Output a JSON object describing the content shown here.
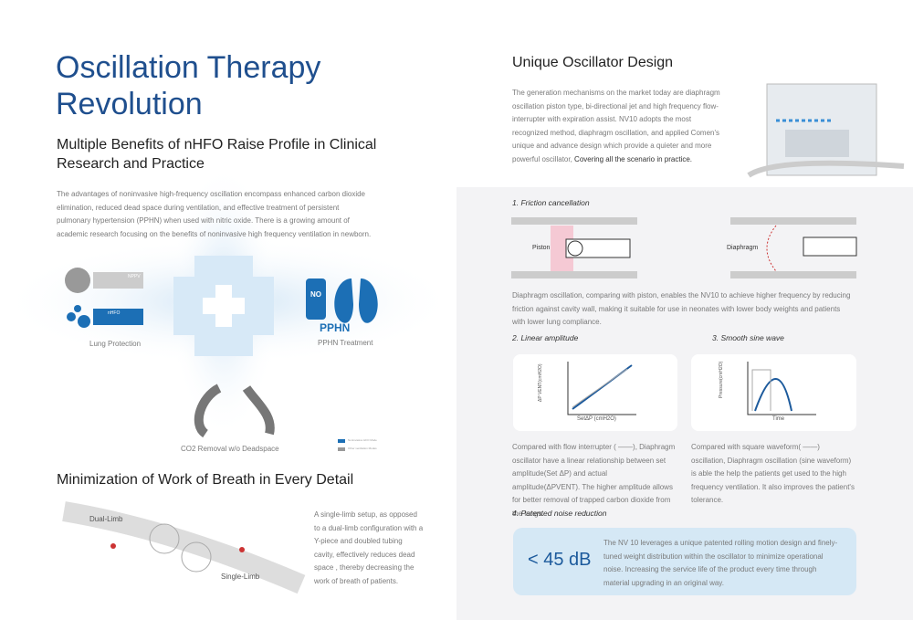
{
  "left": {
    "title": "Oscillation Therapy Revolution",
    "subtitle": "Multiple Benefits of nHFO Raise Profile in Clinical Research and Practice",
    "intro": "The advantages of noninvasive high-frequency oscillation encompass enhanced carbon dioxide elimination, reduced dead space during ventilation, and effective treatment of persistent pulmonary hypertension (PPHN) when used with nitric oxide. There is a growing amount of academic research focusing on the benefits of noninvasive high frequency ventilation in newborn.",
    "pipe_labels": [
      "NPPV",
      "nHFO"
    ],
    "no_label": "NO",
    "pphn": "PPHN",
    "benefits": [
      "Lung Protection",
      "PPHN Treatment",
      "CO2 Removal w/o Deadspace"
    ],
    "legend": [
      "Noninvasive HFO Mode",
      "Other ventilation Modes"
    ],
    "section2": {
      "title": "Minimization of Work of Breath in Every Detail",
      "labels": [
        "Dual-Limb",
        "Single-Limb"
      ],
      "text": "A single-limb setup, as opposed to a dual-limb configuration with a Y-piece and doubled tubing cavity, effectively reduces dead space , thereby decreasing the work of breath of patients."
    }
  },
  "right": {
    "title": "Unique Oscillator Design",
    "intro_a": "The generation mechanisms on the market today are diaphragm oscillation piston type, bi-directional jet and high frequency flow-interrupter with expiration assist. NV10 adopts the most recognized method, diaphragm oscillation, and applied Comen's unique and advance design which provide a quieter and more powerful oscillator,",
    "intro_b": "Covering all the scenario in practice.",
    "friction": {
      "heading": "1. Friction cancellation",
      "labels": [
        "Piston",
        "Diaphragm"
      ],
      "text": "Diaphragm oscillation, comparing with piston, enables the NV10 to achieve higher frequency by reducing friction against cavity wall, making it suitable for use in neonates with lower body weights and patients with lower lung compliance."
    },
    "linear": {
      "heading": "2. Linear amplitude",
      "y_label": "ΔP VENT(cmH2O)",
      "x_label": "SetΔP (cmH2O)",
      "text": "Compared with flow interrupter ( ——), Diaphragm oscillator have a linear relationship between set amplitude(Set ΔP) and actual amplitude(ΔPVENT). The higher amplitude allows for better removal of trapped carbon dioxide from the lungs."
    },
    "sine": {
      "heading": "3. Smooth sine wave",
      "y_label": "Pressure(cmH2O)",
      "x_label": "Time",
      "text": "Compared with square waveform( ——) oscillation, Diaphragm oscillation (sine waveform) is able the help the patients get used to the high frequency ventilation. It also improves the patient's tolerance."
    },
    "noise": {
      "heading": "4. Patented noise reduction",
      "value": "< 45 dB",
      "text": "The NV 10 leverages a unique patented rolling motion design and finely-tuned weight distribution within the oscillator to minimize operational noise.  Increasing the service life of the product every time through material upgrading in an original way."
    }
  }
}
